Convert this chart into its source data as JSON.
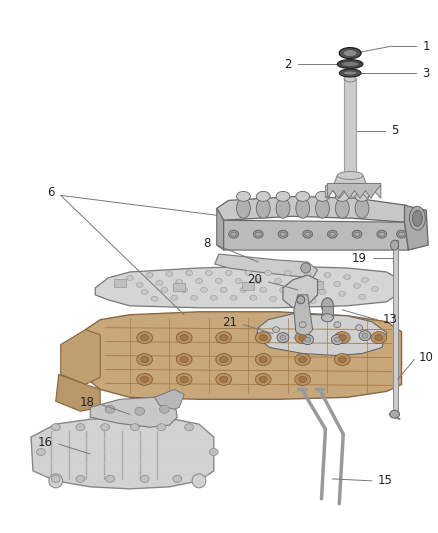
{
  "bg_color": "#ffffff",
  "line_color": "#444444",
  "part_fill": "#e8e8e8",
  "part_dark": "#999999",
  "part_mid": "#bbbbbb",
  "part_light": "#dddddd",
  "leader_color": "#777777",
  "label_color": "#222222",
  "label_fs": 8.5,
  "figsize": [
    4.38,
    5.33
  ],
  "dpi": 100
}
